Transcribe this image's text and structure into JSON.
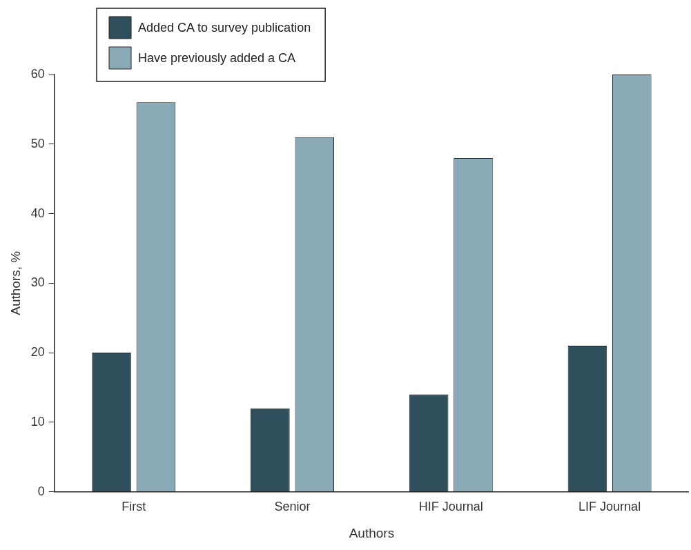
{
  "chart_data": {
    "type": "bar",
    "xlabel": "Authors",
    "ylabel": "Authors, %",
    "categories": [
      "First",
      "Senior",
      "HIF Journal",
      "LIF Journal"
    ],
    "series": [
      {
        "name": "Added CA to survey publication",
        "color": "#2e4f5b",
        "values": [
          20,
          12,
          14,
          21
        ]
      },
      {
        "name": "Have previously added a CA",
        "color": "#8aaab7",
        "values": [
          56,
          51,
          48,
          60
        ]
      }
    ],
    "ylim": [
      0,
      60
    ],
    "yticks": [
      0,
      10,
      20,
      30,
      40,
      50,
      60
    ],
    "grid": false,
    "legend": "top left"
  }
}
